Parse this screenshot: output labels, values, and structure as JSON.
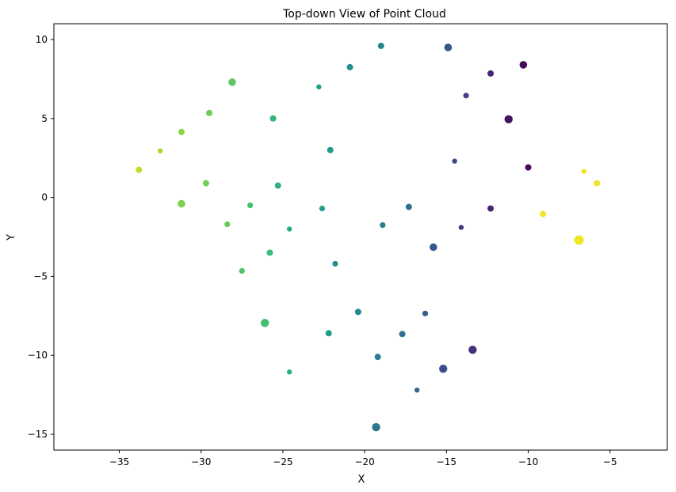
{
  "chart_data": {
    "type": "scatter",
    "title": "Top-down View of Point Cloud",
    "xlabel": "X",
    "ylabel": "Y",
    "xlim": [
      -39,
      -1.5
    ],
    "ylim": [
      -16,
      11
    ],
    "xticks": [
      -35,
      -30,
      -25,
      -20,
      -15,
      -10,
      -5
    ],
    "yticks": [
      -15,
      -10,
      -5,
      0,
      5,
      10
    ],
    "grid": false,
    "colormap": "viridis",
    "points": [
      {
        "x": -19.0,
        "y": 9.6,
        "c": 0.45,
        "s": 1.0
      },
      {
        "x": -14.9,
        "y": 9.5,
        "c": 0.26,
        "s": 1.2
      },
      {
        "x": -10.3,
        "y": 8.4,
        "c": 0.02,
        "s": 1.2
      },
      {
        "x": -12.3,
        "y": 7.85,
        "c": 0.1,
        "s": 1.0
      },
      {
        "x": -20.9,
        "y": 8.25,
        "c": 0.5,
        "s": 1.0
      },
      {
        "x": -28.1,
        "y": 7.3,
        "c": 0.74,
        "s": 1.2
      },
      {
        "x": -22.8,
        "y": 7.0,
        "c": 0.56,
        "s": 0.8
      },
      {
        "x": -13.8,
        "y": 6.45,
        "c": 0.2,
        "s": 0.9
      },
      {
        "x": -11.2,
        "y": 4.95,
        "c": 0.05,
        "s": 1.3
      },
      {
        "x": -29.5,
        "y": 5.35,
        "c": 0.78,
        "s": 1.0
      },
      {
        "x": -25.6,
        "y": 5.0,
        "c": 0.66,
        "s": 1.0
      },
      {
        "x": -31.2,
        "y": 4.15,
        "c": 0.82,
        "s": 1.0
      },
      {
        "x": -32.5,
        "y": 2.95,
        "c": 0.86,
        "s": 0.8
      },
      {
        "x": -22.1,
        "y": 3.0,
        "c": 0.54,
        "s": 1.0
      },
      {
        "x": -14.5,
        "y": 2.3,
        "c": 0.22,
        "s": 0.8
      },
      {
        "x": -10.0,
        "y": 1.9,
        "c": 0.02,
        "s": 1.0
      },
      {
        "x": -6.6,
        "y": 1.65,
        "c": 0.98,
        "s": 0.8
      },
      {
        "x": -33.8,
        "y": 1.75,
        "c": 0.9,
        "s": 1.0
      },
      {
        "x": -5.8,
        "y": 0.9,
        "c": 0.98,
        "s": 1.0
      },
      {
        "x": -29.7,
        "y": 0.9,
        "c": 0.78,
        "s": 1.0
      },
      {
        "x": -25.3,
        "y": 0.75,
        "c": 0.64,
        "s": 1.0
      },
      {
        "x": -31.2,
        "y": -0.4,
        "c": 0.8,
        "s": 1.2
      },
      {
        "x": -27.0,
        "y": -0.5,
        "c": 0.7,
        "s": 0.9
      },
      {
        "x": -22.6,
        "y": -0.7,
        "c": 0.56,
        "s": 0.9
      },
      {
        "x": -17.3,
        "y": -0.6,
        "c": 0.38,
        "s": 1.0
      },
      {
        "x": -12.3,
        "y": -0.7,
        "c": 0.1,
        "s": 1.0
      },
      {
        "x": -9.1,
        "y": -1.05,
        "c": 0.98,
        "s": 1.0
      },
      {
        "x": -28.4,
        "y": -1.7,
        "c": 0.76,
        "s": 0.9
      },
      {
        "x": -24.6,
        "y": -2.0,
        "c": 0.6,
        "s": 0.8
      },
      {
        "x": -18.9,
        "y": -1.75,
        "c": 0.44,
        "s": 0.9
      },
      {
        "x": -14.1,
        "y": -1.9,
        "c": 0.16,
        "s": 0.8
      },
      {
        "x": -6.9,
        "y": -2.7,
        "c": 0.98,
        "s": 1.5
      },
      {
        "x": -15.8,
        "y": -3.15,
        "c": 0.28,
        "s": 1.2
      },
      {
        "x": -25.8,
        "y": -3.5,
        "c": 0.68,
        "s": 1.0
      },
      {
        "x": -21.8,
        "y": -4.2,
        "c": 0.5,
        "s": 0.9
      },
      {
        "x": -27.5,
        "y": -4.65,
        "c": 0.72,
        "s": 0.9
      },
      {
        "x": -20.4,
        "y": -7.25,
        "c": 0.46,
        "s": 1.0
      },
      {
        "x": -16.3,
        "y": -7.35,
        "c": 0.3,
        "s": 0.9
      },
      {
        "x": -26.1,
        "y": -7.95,
        "c": 0.7,
        "s": 1.3
      },
      {
        "x": -22.2,
        "y": -8.6,
        "c": 0.55,
        "s": 1.0
      },
      {
        "x": -17.7,
        "y": -8.65,
        "c": 0.38,
        "s": 1.0
      },
      {
        "x": -13.4,
        "y": -9.65,
        "c": 0.14,
        "s": 1.3
      },
      {
        "x": -19.2,
        "y": -10.1,
        "c": 0.42,
        "s": 1.0
      },
      {
        "x": -15.2,
        "y": -10.85,
        "c": 0.24,
        "s": 1.3
      },
      {
        "x": -24.6,
        "y": -11.05,
        "c": 0.62,
        "s": 0.8
      },
      {
        "x": -16.8,
        "y": -12.2,
        "c": 0.32,
        "s": 0.8
      },
      {
        "x": -19.3,
        "y": -14.55,
        "c": 0.4,
        "s": 1.3
      }
    ]
  }
}
